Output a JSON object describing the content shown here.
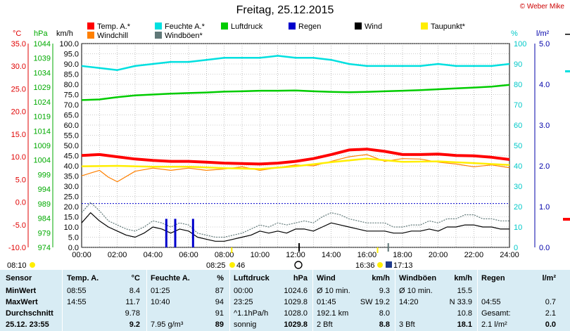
{
  "header": {
    "title": "Freitag, 25.12.2015",
    "credit": "© Weber Mike"
  },
  "legend": [
    {
      "label": "Temp. A.*",
      "color": "#ff0000"
    },
    {
      "label": "Feuchte A.*",
      "color": "#00e0e0"
    },
    {
      "label": "Luftdruck",
      "color": "#00cc00"
    },
    {
      "label": "Regen",
      "color": "#0000cc"
    },
    {
      "label": "Wind",
      "color": "#000000"
    },
    {
      "label": "Taupunkt*",
      "color": "#ffee00"
    },
    {
      "label": "Windchill",
      "color": "#ff8000"
    },
    {
      "label": "Windböen*",
      "color": "#607878"
    }
  ],
  "axis_units": {
    "celsius": "°C",
    "hpa": "hPa",
    "kmh": "km/h",
    "percent": "%",
    "rain": "l/m²"
  },
  "marker_labels": {
    "sunrise": "08:25",
    "moon_rise": "46",
    "noon_left": "08:10",
    "sunset": "16:36",
    "moonset": "17:13"
  },
  "chart_data": {
    "type": "line",
    "title": "Freitag, 25.12.2015",
    "x_labels": [
      "00:00",
      "02:00",
      "04:00",
      "06:00",
      "08:00",
      "10:00",
      "12:00",
      "14:00",
      "16:00",
      "18:00",
      "20:00",
      "22:00",
      "24:00"
    ],
    "xlim": [
      0,
      24
    ],
    "axes": {
      "celsius_ticks": [
        "35.0",
        "30.0",
        "25.0",
        "20.0",
        "15.0",
        "10.0",
        "5.0",
        "0.0",
        "-5.0",
        "-10.0"
      ],
      "hpa_ticks": [
        "1044",
        "1039",
        "1034",
        "1029",
        "1024",
        "1019",
        "1014",
        "1009",
        "1004",
        "999",
        "994",
        "989",
        "984",
        "979",
        "974"
      ],
      "kmh_ticks": [
        "100.0",
        "95.0",
        "90.0",
        "85.0",
        "80.0",
        "75.0",
        "70.0",
        "65.0",
        "60.0",
        "55.0",
        "50.0",
        "45.0",
        "40.0",
        "35.0",
        "30.0",
        "25.0",
        "20.0",
        "15.0",
        "10.0",
        "5.0",
        "0.0"
      ],
      "percent_ticks": [
        "100",
        "90",
        "80",
        "70",
        "60",
        "50",
        "40",
        "30",
        "20",
        "10",
        "0"
      ],
      "rain_ticks": [
        "5.0",
        "4.0",
        "3.0",
        "2.0",
        "1.0",
        "0.0"
      ]
    },
    "series": [
      {
        "name": "Temp. A.*",
        "unit": "°C",
        "color": "#ff0000",
        "x": [
          0,
          1,
          2,
          3,
          4,
          5,
          6,
          7,
          8,
          9,
          10,
          11,
          12,
          13,
          14,
          15,
          16,
          17,
          18,
          19,
          20,
          21,
          22,
          23,
          24
        ],
        "y": [
          10.3,
          10.5,
          10.0,
          9.5,
          9.2,
          9.0,
          9.0,
          8.8,
          8.6,
          8.5,
          8.4,
          8.6,
          9.0,
          9.6,
          10.5,
          11.5,
          11.7,
          11.2,
          10.5,
          10.5,
          10.6,
          10.3,
          10.2,
          9.9,
          9.4
        ]
      },
      {
        "name": "Feuchte A.*",
        "unit": "%",
        "color": "#00e0e0",
        "x": [
          0,
          1,
          2,
          3,
          4,
          5,
          6,
          7,
          8,
          9,
          10,
          11,
          12,
          13,
          14,
          15,
          16,
          17,
          18,
          19,
          20,
          21,
          22,
          23,
          24
        ],
        "y": [
          89,
          88,
          87,
          89,
          90,
          91,
          91,
          92,
          93,
          93,
          93,
          94,
          93,
          93,
          92,
          90,
          89,
          89,
          89,
          89,
          90,
          89,
          89,
          89,
          90
        ]
      },
      {
        "name": "Luftdruck",
        "unit": "hPa",
        "color": "#00cc00",
        "x": [
          0,
          1,
          2,
          3,
          4,
          5,
          6,
          7,
          8,
          9,
          10,
          11,
          12,
          13,
          14,
          15,
          16,
          17,
          18,
          19,
          20,
          21,
          22,
          23,
          24
        ],
        "y": [
          1024.6,
          1024.8,
          1025.6,
          1026.2,
          1026.5,
          1026.8,
          1027.0,
          1027.2,
          1027.5,
          1027.6,
          1027.8,
          1027.8,
          1027.9,
          1027.6,
          1027.4,
          1027.3,
          1027.4,
          1027.6,
          1027.8,
          1028.0,
          1028.3,
          1028.6,
          1028.9,
          1029.2,
          1029.8
        ]
      },
      {
        "name": "Taupunkt*",
        "unit": "°C",
        "color": "#ffee00",
        "x": [
          0,
          2,
          4,
          6,
          8,
          10,
          12,
          14,
          16,
          18,
          20,
          22,
          24
        ],
        "y": [
          7.9,
          8.0,
          7.8,
          7.8,
          7.5,
          7.3,
          7.9,
          8.8,
          9.6,
          8.9,
          9.0,
          8.6,
          8.2
        ]
      },
      {
        "name": "Windchill",
        "unit": "°C",
        "color": "#ff8000",
        "x": [
          0,
          1,
          1.5,
          2,
          3,
          4,
          5,
          6,
          7,
          8,
          9,
          10,
          11,
          12,
          13,
          14,
          15,
          16,
          17,
          18,
          19,
          20,
          21,
          22,
          23,
          24
        ],
        "y": [
          5.8,
          7.0,
          5.5,
          4.5,
          6.8,
          7.5,
          7.0,
          7.5,
          7.0,
          7.3,
          7.8,
          7.0,
          7.6,
          8.2,
          8.0,
          9.0,
          10.0,
          10.5,
          9.0,
          9.6,
          9.5,
          8.8,
          8.4,
          7.8,
          8.2,
          7.6
        ]
      },
      {
        "name": "Wind",
        "unit": "km/h",
        "color": "#000000",
        "x": [
          0,
          0.5,
          1,
          1.5,
          2,
          2.5,
          3,
          3.5,
          4,
          4.5,
          5,
          5.5,
          6,
          6.5,
          7,
          7.5,
          8,
          8.5,
          9,
          9.5,
          10,
          10.5,
          11,
          11.5,
          12,
          12.5,
          13,
          13.5,
          14,
          14.5,
          15,
          15.5,
          16,
          16.5,
          17,
          17.5,
          18,
          18.5,
          19,
          19.5,
          20,
          20.5,
          21,
          21.5,
          22,
          22.5,
          23,
          23.5,
          24
        ],
        "y": [
          12,
          17,
          13,
          10,
          8,
          6,
          5,
          7,
          10,
          9,
          7,
          9,
          8,
          5,
          4,
          3,
          3,
          4,
          5,
          6,
          8,
          7,
          8,
          7,
          9,
          9,
          8,
          10,
          12,
          11,
          10,
          9,
          8,
          8,
          8,
          7,
          7,
          8,
          8,
          9,
          8,
          10,
          10,
          11,
          11,
          10,
          10,
          9,
          9
        ]
      },
      {
        "name": "Windböen*",
        "unit": "km/h",
        "color": "#607878",
        "x": [
          0,
          0.5,
          1,
          1.5,
          2,
          2.5,
          3,
          3.5,
          4,
          4.5,
          5,
          5.5,
          6,
          6.5,
          7,
          7.5,
          8,
          8.5,
          9,
          9.5,
          10,
          10.5,
          11,
          11.5,
          12,
          12.5,
          13,
          13.5,
          14,
          14.5,
          15,
          15.5,
          16,
          16.5,
          17,
          17.5,
          18,
          18.5,
          19,
          19.5,
          20,
          20.5,
          21,
          21.5,
          22,
          22.5,
          23,
          23.5,
          24
        ],
        "y": [
          17,
          22,
          18,
          13,
          11,
          9,
          8,
          10,
          13,
          12,
          10,
          12,
          11,
          7,
          6,
          5,
          5,
          6,
          7,
          9,
          11,
          10,
          12,
          11,
          12,
          13,
          12,
          15,
          17,
          16,
          14,
          13,
          12,
          12,
          12,
          10,
          10,
          11,
          11,
          13,
          12,
          14,
          14,
          16,
          16,
          14,
          14,
          13,
          13
        ]
      },
      {
        "name": "Regen",
        "unit": "l/m²",
        "color": "#0000cc",
        "x": [
          4.75,
          5.25,
          6.25
        ],
        "y": [
          0.7,
          0.7,
          0.7
        ]
      }
    ],
    "rain_reference_line_kmh": 21.5,
    "grid": true
  },
  "table": {
    "headers": [
      "Sensor",
      "Temp. A.",
      "°C",
      "Feuchte A.",
      "%",
      "Luftdruck",
      "hPa",
      "Wind",
      "km/h",
      "Windböen",
      "km/h",
      "Regen",
      "l/m²"
    ],
    "rows": [
      {
        "label": "MinWert",
        "temp_time": "08:55",
        "temp": "8.4",
        "hum_time": "01:25",
        "hum": "87",
        "press_time": "00:00",
        "press": "1024.6",
        "wind_a": "Ø 10 min.",
        "wind": "9.3",
        "gust_a": "Ø 10 min.",
        "gust": "15.5",
        "rain_a": "",
        "rain": ""
      },
      {
        "label": "MaxWert",
        "temp_time": "14:55",
        "temp": "11.7",
        "hum_time": "10:40",
        "hum": "94",
        "press_time": "23:25",
        "press": "1029.8",
        "wind_a": "01:45",
        "wind_b": "SW 19.2",
        "wind": "",
        "gust_a": "14:20",
        "gust_b": "N 33.9",
        "gust": "",
        "rain_a": "04:55",
        "rain": "0.7"
      },
      {
        "label": "Durchschnitt",
        "temp_time": "",
        "temp": "9.78",
        "hum_time": "",
        "hum": "91",
        "press_time": "^1.1hPa/h",
        "press": "1028.0",
        "wind_a": "192.1 km",
        "wind": "8.0",
        "gust_a": "",
        "gust": "10.8",
        "rain_a": "Gesamt:",
        "rain": "2.1"
      },
      {
        "label": "25.12. 23:55",
        "temp_time": "",
        "temp": "9.2",
        "hum_time": "7.95 g/m³",
        "hum": "89",
        "press_time": "sonnig",
        "press": "1029.8",
        "wind_a": "2 Bft",
        "wind": "8.8",
        "gust_a": "3 Bft",
        "gust": "18.1",
        "rain_a": "2.1 l/m²",
        "rain": "0.0"
      }
    ]
  }
}
